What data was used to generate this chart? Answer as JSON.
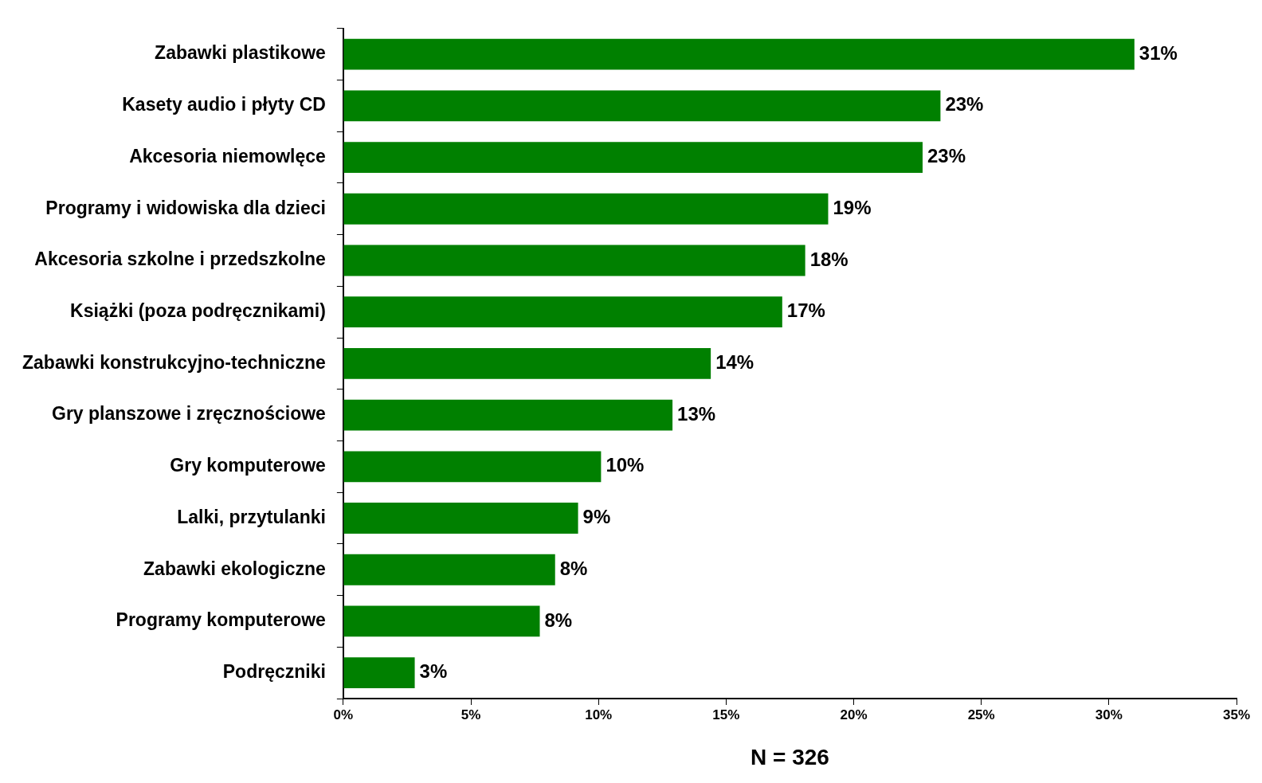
{
  "chart_data": {
    "type": "bar",
    "orientation": "horizontal",
    "categories": [
      "Zabawki plastikowe",
      "Kasety audio i płyty CD",
      "Akcesoria niemowlęce",
      "Programy i widowiska dla dzieci",
      "Akcesoria szkolne i przedszkolne",
      "Książki (poza podręcznikami)",
      "Zabawki konstrukcyjno-techniczne",
      "Gry planszowe i zręcznościowe",
      "Gry komputerowe",
      "Lalki, przytulanki",
      "Zabawki ekologiczne",
      "Programy komputerowe",
      "Podręczniki"
    ],
    "values": [
      31,
      23.4,
      22.7,
      19,
      18.1,
      17.2,
      14.4,
      12.9,
      10.1,
      9.2,
      8.3,
      7.7,
      2.8
    ],
    "value_labels": [
      "31%",
      "23%",
      "23%",
      "19%",
      "18%",
      "17%",
      "14%",
      "13%",
      "10%",
      "9%",
      "8%",
      "8%",
      "3%"
    ],
    "color": "#008000",
    "xlabel": "N = 326",
    "xlim": [
      0,
      35
    ],
    "xticks": [
      {
        "value": 0,
        "label": "0%"
      },
      {
        "value": 5,
        "label": "5%"
      },
      {
        "value": 10,
        "label": "10%"
      },
      {
        "value": 15,
        "label": "15%"
      },
      {
        "value": 20,
        "label": "20%"
      },
      {
        "value": 25,
        "label": "25%"
      },
      {
        "value": 30,
        "label": "30%"
      },
      {
        "value": 35,
        "label": "35%"
      }
    ],
    "grid": false,
    "legend": false
  }
}
